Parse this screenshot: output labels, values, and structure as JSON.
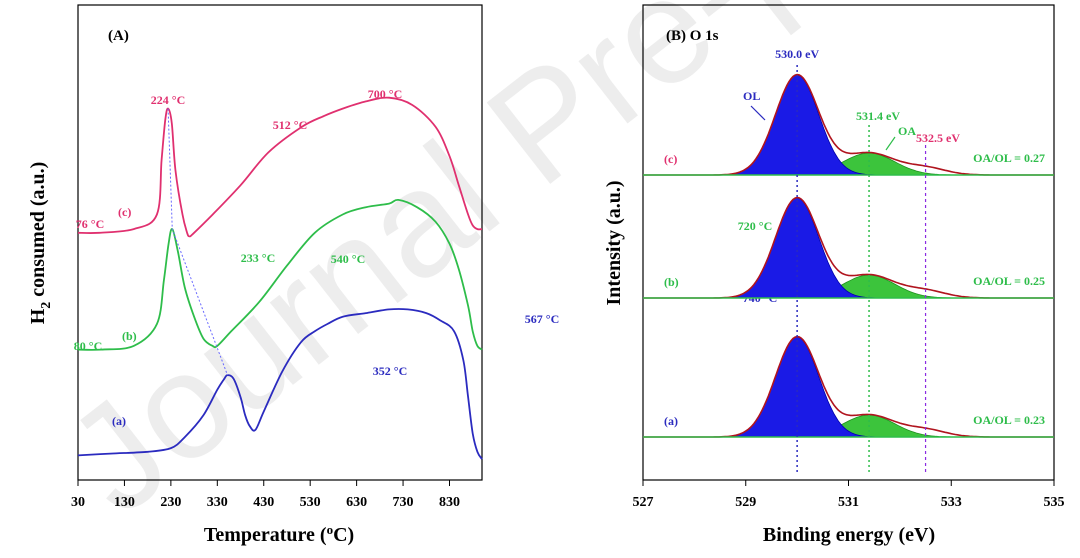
{
  "colors": {
    "a": "#2b2bbf",
    "b": "#2ebd4a",
    "c": "#e0306f",
    "fit": "#b0141e",
    "oa_fill": "#3cc43c",
    "ol_fill": "#1a1ae6"
  },
  "watermark": "Journal Pre-proof",
  "chart_data": [
    {
      "type": "line",
      "panel_label": "(A)",
      "xlabel": "Temperature (oC)",
      "ylabel": "H2 consumed (a.u.)",
      "xlim": [
        30,
        900
      ],
      "xticks": [
        "30",
        "130",
        "230",
        "330",
        "430",
        "530",
        "630",
        "730",
        "830"
      ],
      "series": [
        {
          "label": "(a)",
          "color": "#2b2bbf",
          "x": [
            30,
            100,
            180,
            230,
            260,
            300,
            330,
            345,
            352,
            365,
            380,
            390,
            400,
            412,
            430,
            470,
            510,
            540,
            567,
            600,
            650,
            700,
            740,
            780,
            810,
            840,
            860,
            870,
            880,
            890,
            900
          ],
          "y": [
            0.04,
            0.045,
            0.05,
            0.06,
            0.09,
            0.15,
            0.22,
            0.25,
            0.26,
            0.25,
            0.2,
            0.15,
            0.12,
            0.11,
            0.16,
            0.27,
            0.35,
            0.38,
            0.4,
            0.42,
            0.43,
            0.44,
            0.44,
            0.43,
            0.41,
            0.38,
            0.3,
            0.2,
            0.1,
            0.05,
            0.03
          ],
          "annotations": [
            "352 °C",
            "567 °C",
            "740 °C"
          ]
        },
        {
          "label": "(b)",
          "color": "#2ebd4a",
          "x": [
            30,
            80,
            150,
            200,
            215,
            225,
            233,
            245,
            260,
            280,
            300,
            320,
            330,
            360,
            420,
            480,
            540,
            600,
            650,
            700,
            720,
            760,
            800,
            830,
            850,
            870,
            880,
            890,
            900
          ],
          "y": [
            0.33,
            0.33,
            0.34,
            0.4,
            0.52,
            0.62,
            0.66,
            0.6,
            0.5,
            0.42,
            0.36,
            0.34,
            0.34,
            0.38,
            0.46,
            0.56,
            0.65,
            0.7,
            0.72,
            0.73,
            0.74,
            0.72,
            0.68,
            0.62,
            0.55,
            0.45,
            0.38,
            0.34,
            0.33
          ],
          "annotations": [
            "80 °C",
            "233 °C",
            "540 °C",
            "720 °C"
          ]
        },
        {
          "label": "(c)",
          "color": "#e0306f",
          "x": [
            30,
            76,
            150,
            200,
            210,
            218,
            224,
            232,
            240,
            255,
            265,
            270,
            280,
            320,
            380,
            440,
            512,
            560,
            600,
            650,
            700,
            750,
            800,
            830,
            850,
            870,
            880,
            890,
            900
          ],
          "y": [
            0.65,
            0.65,
            0.66,
            0.7,
            0.85,
            0.96,
            0.99,
            0.95,
            0.82,
            0.7,
            0.65,
            0.64,
            0.65,
            0.7,
            0.78,
            0.87,
            0.94,
            0.97,
            0.99,
            1.01,
            1.02,
            1.0,
            0.94,
            0.86,
            0.78,
            0.7,
            0.67,
            0.66,
            0.66
          ],
          "annotations": [
            "76 °C",
            "224 °C",
            "512 °C",
            "700 °C"
          ]
        }
      ]
    },
    {
      "type": "area",
      "panel_label": "(B) O 1s",
      "xlabel": "Binding energy (eV)",
      "ylabel": "Intensity (a.u.)",
      "xlim": [
        527,
        535
      ],
      "xticks": [
        "527",
        "529",
        "531",
        "533",
        "535"
      ],
      "peaks": {
        "OL": {
          "center": 530.0,
          "label": "OL",
          "annotation": "530.0 eV"
        },
        "OA": {
          "center": 531.4,
          "label": "OA",
          "annotation": "531.4 eV"
        },
        "OH": {
          "center": 532.5,
          "annotation": "532.5 eV"
        }
      },
      "series": [
        {
          "label": "(c)",
          "ratio_text": "OA/OL = 0.27",
          "OL_height": 1.0,
          "OA_height": 0.22
        },
        {
          "label": "(b)",
          "ratio_text": "OA/OL = 0.25",
          "OL_height": 1.0,
          "OA_height": 0.23
        },
        {
          "label": "(a)",
          "ratio_text": "OA/OL = 0.23",
          "OL_height": 1.0,
          "OA_height": 0.22
        }
      ]
    }
  ]
}
